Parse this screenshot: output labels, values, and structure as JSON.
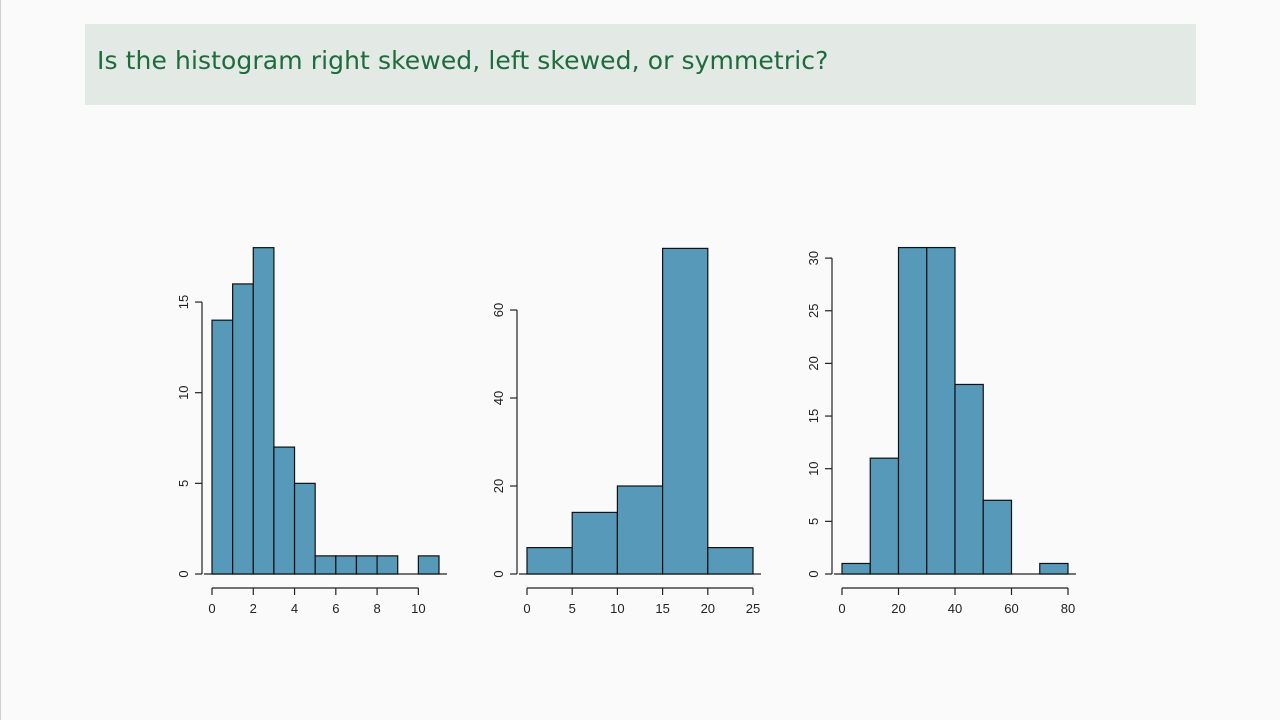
{
  "slide": {
    "question": "Is the histogram right skewed, left skewed, or symmetric?",
    "colors": {
      "title_bg": "#e3e9e4",
      "title_text": "#1e6b3c",
      "bar_fill": "#5799b9",
      "bar_stroke": "#111111",
      "background": "#fafafa"
    }
  },
  "chart_data": [
    {
      "type": "bar",
      "title": "",
      "xlabel": "",
      "ylabel": "",
      "bin_edges": [
        0,
        1,
        2,
        3,
        4,
        5,
        6,
        7,
        8,
        9,
        10,
        11
      ],
      "values": [
        14,
        16,
        18,
        7,
        5,
        1,
        1,
        1,
        1,
        0,
        1
      ],
      "x_ticks": [
        0,
        2,
        4,
        6,
        8,
        10
      ],
      "y_ticks": [
        0,
        5,
        10,
        15
      ],
      "xlim": [
        0,
        11
      ],
      "ylim": [
        0,
        18
      ],
      "shape": "right skewed"
    },
    {
      "type": "bar",
      "title": "",
      "xlabel": "",
      "ylabel": "",
      "bin_edges": [
        0,
        5,
        10,
        15,
        20,
        25
      ],
      "values": [
        6,
        14,
        20,
        74,
        6
      ],
      "x_ticks": [
        0,
        5,
        10,
        15,
        20,
        25
      ],
      "y_ticks": [
        0,
        20,
        40,
        60
      ],
      "xlim": [
        0,
        25
      ],
      "ylim": [
        0,
        74
      ],
      "shape": "left skewed"
    },
    {
      "type": "bar",
      "title": "",
      "xlabel": "",
      "ylabel": "",
      "bin_edges": [
        0,
        10,
        20,
        30,
        40,
        50,
        60,
        70,
        80
      ],
      "values": [
        1,
        11,
        31,
        31,
        18,
        7,
        0,
        1
      ],
      "x_ticks": [
        0,
        20,
        40,
        60,
        80
      ],
      "y_ticks": [
        0,
        5,
        10,
        15,
        20,
        25,
        30
      ],
      "xlim": [
        0,
        80
      ],
      "ylim": [
        0,
        31
      ],
      "shape": "symmetric"
    }
  ]
}
